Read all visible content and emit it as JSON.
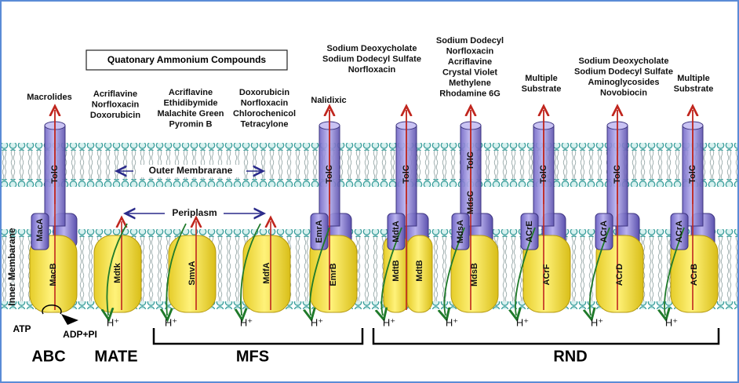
{
  "header": {
    "title": "Quatonary Ammonium Compounds"
  },
  "substrates": [
    [
      "Macrolides"
    ],
    [
      "Acriflavine",
      "Norfloxacin",
      "Doxorubicin"
    ],
    [
      "Acriflavine",
      "Ethidibymide",
      "Malachite Green",
      "Pyromin B"
    ],
    [
      "Doxorubicin",
      "Norfloxacin",
      "Chlorochenicol",
      "Tetracylone"
    ],
    [
      "Nalidixic"
    ],
    [
      "Sodium Deoxycholate",
      "Sodium Dodecyl Sulfate",
      "Norfloxacin"
    ],
    [
      "Sodium Dodecyl",
      "Norfloxacin",
      "Acriflavine",
      "Crystal Violet",
      "Methylene",
      "Rhodamine 6G"
    ],
    [
      "Multiple",
      "Substrate"
    ],
    [
      "Sodium Deoxycholate",
      "Sodium Dodecyl Sulfate",
      "Aminoglycosides",
      "Novobiocin"
    ],
    [
      "Multiple",
      "Substrate"
    ]
  ],
  "membranes": {
    "outer": "Outer Membrarane",
    "periplasm": "Periplasm",
    "inner": "Inner Membarane"
  },
  "proteins": [
    "TolC",
    "MacA",
    "MacB",
    "Mdtk",
    "SmvA",
    "MdfA",
    "TolC",
    "EmrA",
    "EmrB",
    "TolC",
    "MdtA",
    "MdtB",
    "MdtB",
    "TolC",
    "MdsC",
    "MdsA",
    "MdsB",
    "TolC",
    "ACrE",
    "ACrF",
    "TolC",
    "ACrA",
    "ACrD",
    "TolC",
    "ACrA",
    "ACrB"
  ],
  "ions": [
    "H⁺",
    "H⁺",
    "H⁺",
    "H⁺",
    "H⁺",
    "H⁺",
    "H⁺",
    "H⁺",
    "H⁺"
  ],
  "energy": {
    "atp": "ATP",
    "adp": "ADP+PI"
  },
  "families": [
    "ABC",
    "MATE",
    "MFS",
    "RND"
  ]
}
